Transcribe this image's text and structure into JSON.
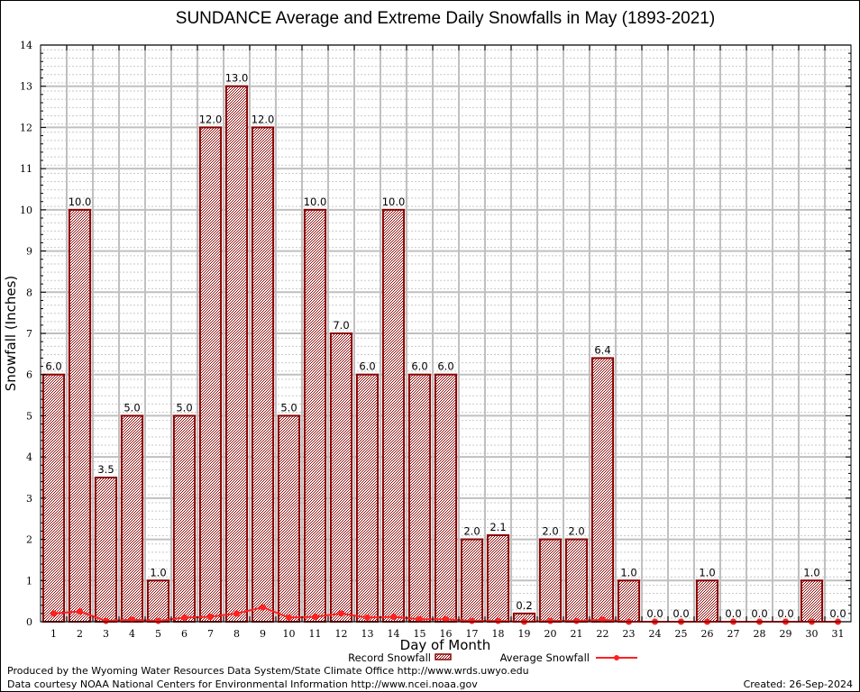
{
  "chart_data": {
    "type": "bar",
    "title": "SUNDANCE Average and Extreme Daily Snowfalls in May (1893-2021)",
    "xlabel": "Day of Month",
    "ylabel": "Snowfall (Inches)",
    "ylim": [
      0,
      14
    ],
    "yticks": [
      "0",
      "1",
      "2",
      "3",
      "4",
      "5",
      "6",
      "7",
      "8",
      "9",
      "10",
      "11",
      "12",
      "13",
      "14"
    ],
    "grid": true,
    "categories": [
      "1",
      "2",
      "3",
      "4",
      "5",
      "6",
      "7",
      "8",
      "9",
      "10",
      "11",
      "12",
      "13",
      "14",
      "15",
      "16",
      "17",
      "18",
      "19",
      "20",
      "21",
      "22",
      "23",
      "24",
      "25",
      "26",
      "27",
      "28",
      "29",
      "30",
      "31"
    ],
    "series": [
      {
        "name": "Record Snowfall",
        "kind": "bar",
        "color": "#8b0000",
        "values": [
          6.0,
          10.0,
          3.5,
          5.0,
          1.0,
          5.0,
          12.0,
          13.0,
          12.0,
          5.0,
          10.0,
          7.0,
          6.0,
          10.0,
          6.0,
          6.0,
          2.0,
          2.1,
          0.2,
          2.0,
          2.0,
          6.4,
          1.0,
          0.0,
          0.0,
          1.0,
          0.0,
          0.0,
          0.0,
          1.0,
          0.0
        ],
        "labels": [
          "6.0",
          "10.0",
          "3.5",
          "5.0",
          "1.0",
          "5.0",
          "12.0",
          "13.0",
          "12.0",
          "5.0",
          "10.0",
          "7.0",
          "6.0",
          "10.0",
          "6.0",
          "6.0",
          "2.0",
          "2.1",
          "0.2",
          "2.0",
          "2.0",
          "6.4",
          "1.0",
          "0.0",
          "0.0",
          "1.0",
          "0.0",
          "0.0",
          "0.0",
          "1.0",
          "0.0"
        ]
      },
      {
        "name": "Average Snowfall",
        "kind": "line",
        "color": "#ff2020",
        "values": [
          0.2,
          0.25,
          0.02,
          0.05,
          0.02,
          0.1,
          0.12,
          0.2,
          0.35,
          0.1,
          0.12,
          0.2,
          0.1,
          0.12,
          0.06,
          0.06,
          0.02,
          0.02,
          0.0,
          0.02,
          0.02,
          0.05,
          0.0,
          0.0,
          0.0,
          0.0,
          0.0,
          0.0,
          0.0,
          0.0,
          0.0
        ]
      }
    ],
    "legend": [
      "Record Snowfall",
      "Average Snowfall"
    ],
    "legend_position": "bottom-center"
  },
  "footer": {
    "line1": "Produced by the Wyoming Water Resources Data System/State Climate Office http://www.wrds.uwyo.edu",
    "line2": "Data courtesy NOAA National Centers for Environmental Information http://www.ncei.noaa.gov",
    "created": "Created: 26-Sep-2024"
  }
}
